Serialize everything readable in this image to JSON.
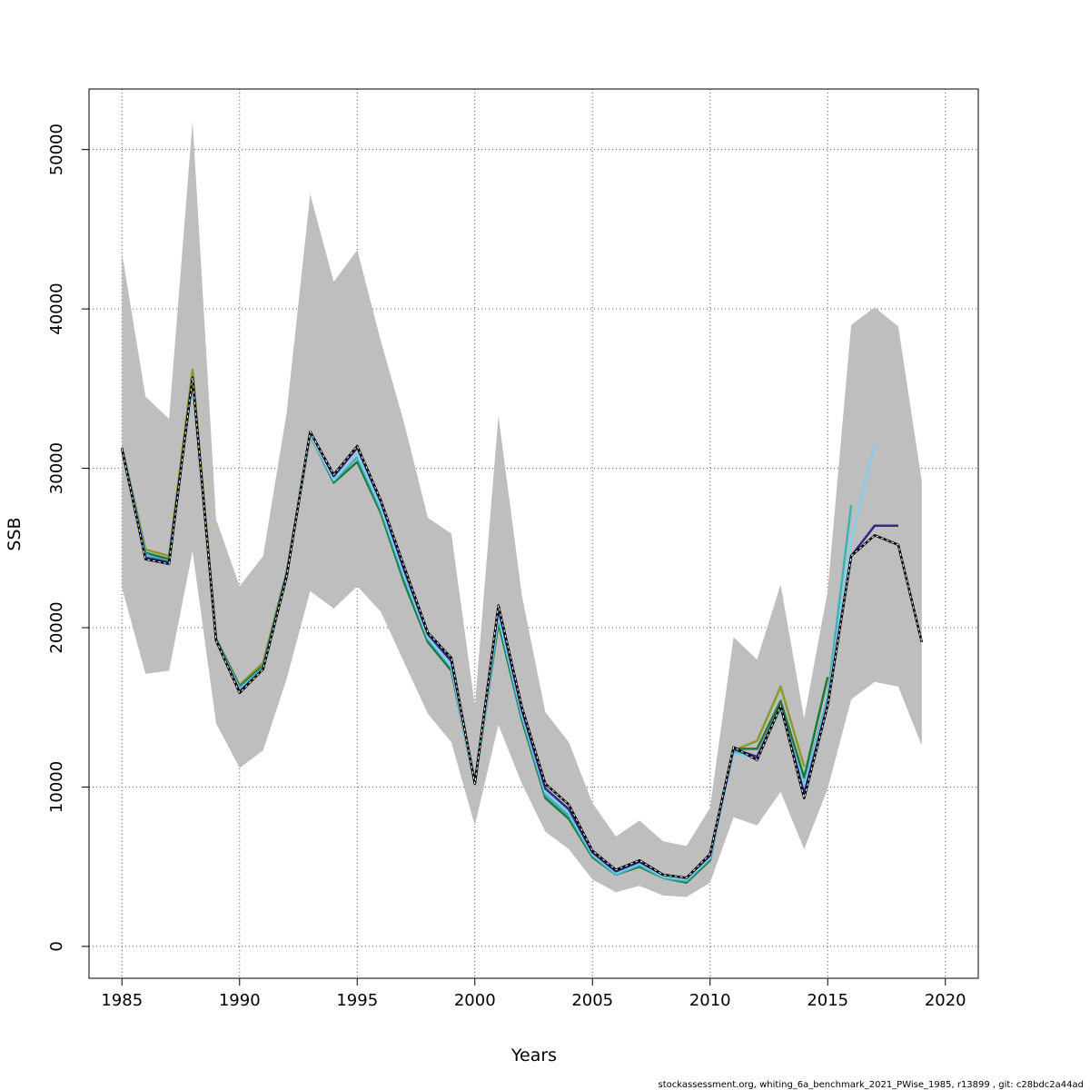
{
  "chart_data": {
    "type": "line",
    "title": "",
    "xlabel": "Years",
    "ylabel": "SSB",
    "xlim": [
      1983.6,
      2021.4
    ],
    "ylim": [
      -2000,
      53800
    ],
    "xticks": [
      "1985",
      "1990",
      "1995",
      "2000",
      "2005",
      "2010",
      "2015",
      "2020"
    ],
    "yticks": [
      "0",
      "10000",
      "20000",
      "30000",
      "40000",
      "50000"
    ],
    "grid": true,
    "grid_style": "dotted",
    "confidence_band": {
      "x": [
        1985,
        1986,
        1987,
        1988,
        1989,
        1990,
        1991,
        1992,
        1993,
        1994,
        1995,
        1996,
        1997,
        1998,
        1999,
        2000,
        2001,
        2002,
        2003,
        2004,
        2005,
        2006,
        2007,
        2008,
        2009,
        2010,
        2011,
        2012,
        2013,
        2014,
        2015,
        2016,
        2017,
        2018,
        2019
      ],
      "lower": [
        22500,
        17100,
        17300,
        24800,
        14000,
        11200,
        12300,
        16800,
        22300,
        21200,
        22600,
        21000,
        17800,
        14600,
        12800,
        7600,
        13900,
        10200,
        7200,
        6100,
        4200,
        3400,
        3800,
        3200,
        3100,
        4000,
        8100,
        7600,
        9700,
        6100,
        9900,
        15500,
        16600,
        16300,
        12600
      ],
      "upper": [
        43500,
        34500,
        33100,
        51800,
        26800,
        22600,
        24500,
        33500,
        47200,
        41700,
        43700,
        38000,
        32800,
        26900,
        25900,
        15100,
        33300,
        22000,
        14700,
        12800,
        9000,
        6900,
        7900,
        6600,
        6300,
        8700,
        19400,
        18000,
        22700,
        14300,
        22300,
        39000,
        40100,
        38900,
        29200
      ]
    },
    "series": [
      {
        "color": "#000000",
        "style": "dashed-overlay",
        "x": [
          1985,
          1986,
          1987,
          1988,
          1989,
          1990,
          1991,
          1992,
          1993,
          1994,
          1995,
          1996,
          1997,
          1998,
          1999,
          2000,
          2001,
          2002,
          2003,
          2004,
          2005,
          2006,
          2007,
          2008,
          2009,
          2010,
          2011,
          2012,
          2013,
          2014,
          2015,
          2016,
          2017,
          2018,
          2019
        ],
        "values": [
          31200,
          24300,
          24000,
          35700,
          19200,
          15900,
          17400,
          23200,
          32300,
          29600,
          31400,
          28000,
          23800,
          19700,
          18100,
          10200,
          21400,
          15000,
          10200,
          8900,
          6000,
          4800,
          5400,
          4500,
          4300,
          5800,
          12500,
          11700,
          15100,
          9300,
          15100,
          24500,
          25800,
          25200,
          19100
        ]
      },
      {
        "color": "#2E2A8C",
        "x": [
          1985,
          1986,
          1987,
          1988,
          1989,
          1990,
          1991,
          1992,
          1993,
          1994,
          1995,
          1996,
          1997,
          1998,
          1999,
          2000,
          2001,
          2002,
          2003,
          2004,
          2005,
          2006,
          2007,
          2008,
          2009,
          2010,
          2011,
          2012,
          2013,
          2014,
          2015,
          2016,
          2017,
          2018
        ],
        "values": [
          31200,
          24400,
          24100,
          35700,
          19200,
          16000,
          17400,
          23300,
          32300,
          29500,
          31300,
          27900,
          23600,
          19600,
          17900,
          10300,
          21200,
          14800,
          9900,
          8600,
          5900,
          4700,
          5300,
          4500,
          4300,
          5700,
          12400,
          11900,
          15100,
          9600,
          15200,
          24500,
          26400,
          26400
        ]
      },
      {
        "color": "#87CEEB",
        "x": [
          1985,
          1986,
          1987,
          1988,
          1989,
          1990,
          1991,
          1992,
          1993,
          1994,
          1995,
          1996,
          1997,
          1998,
          1999,
          2000,
          2001,
          2002,
          2003,
          2004,
          2005,
          2006,
          2007,
          2008,
          2009,
          2010,
          2011,
          2012,
          2013,
          2014,
          2015,
          2016,
          2017
        ],
        "values": [
          31200,
          24500,
          23900,
          35600,
          19200,
          16100,
          17400,
          23200,
          32100,
          29300,
          30900,
          27600,
          23300,
          19400,
          17600,
          10200,
          20800,
          14600,
          9700,
          8400,
          5800,
          4600,
          5200,
          4400,
          4200,
          5600,
          12100,
          11800,
          15000,
          10000,
          15300,
          25500,
          31500
        ]
      },
      {
        "color": "#3CB4B4",
        "x": [
          1985,
          1986,
          1987,
          1988,
          1989,
          1990,
          1991,
          1992,
          1993,
          1994,
          1995,
          1996,
          1997,
          1998,
          1999,
          2000,
          2001,
          2002,
          2003,
          2004,
          2005,
          2006,
          2007,
          2008,
          2009,
          2010,
          2011,
          2012,
          2013,
          2014,
          2015,
          2016
        ],
        "values": [
          31200,
          24600,
          24100,
          35500,
          19200,
          16200,
          17500,
          23300,
          32100,
          29200,
          30700,
          27400,
          23100,
          19300,
          17500,
          10200,
          20600,
          14400,
          9500,
          8200,
          5700,
          4500,
          5100,
          4300,
          4100,
          5500,
          12200,
          11900,
          14900,
          10100,
          15600,
          27700
        ]
      },
      {
        "color": "#1B7A3A",
        "x": [
          1985,
          1986,
          1987,
          1988,
          1989,
          1990,
          1991,
          1992,
          1993,
          1994,
          1995,
          1996,
          1997,
          1998,
          1999,
          2000,
          2001,
          2002,
          2003,
          2004,
          2005,
          2006,
          2007,
          2008,
          2009,
          2010,
          2011,
          2012,
          2013,
          2014,
          2015
        ],
        "values": [
          31300,
          24700,
          24300,
          35700,
          19300,
          16300,
          17600,
          23400,
          32100,
          29100,
          30400,
          27200,
          22800,
          19100,
          17300,
          10200,
          20300,
          14200,
          9300,
          8000,
          5600,
          4500,
          5000,
          4300,
          4000,
          5400,
          12400,
          12400,
          15400,
          10600,
          16900
        ]
      },
      {
        "color": "#8C9A2C",
        "x": [
          1985,
          1986,
          1987,
          1988,
          1989,
          1990,
          1991,
          1992,
          1993,
          1994,
          1995,
          1996,
          1997,
          1998,
          1999,
          2000,
          2001,
          2002,
          2003,
          2004,
          2005,
          2006,
          2007,
          2008,
          2009,
          2010,
          2011,
          2012,
          2013,
          2014
        ],
        "values": [
          31300,
          24900,
          24500,
          36200,
          19300,
          16400,
          17800,
          23500,
          32000,
          29300,
          30800,
          27500,
          23100,
          19300,
          17500,
          10300,
          20900,
          14500,
          9500,
          8200,
          5700,
          4600,
          5200,
          4400,
          4200,
          5500,
          12300,
          12900,
          16300,
          11300
        ]
      }
    ],
    "caption": "stockassessment.org, whiting_6a_benchmark_2021_PWise_1985, r13899 , git: c28bdc2a44ad"
  }
}
